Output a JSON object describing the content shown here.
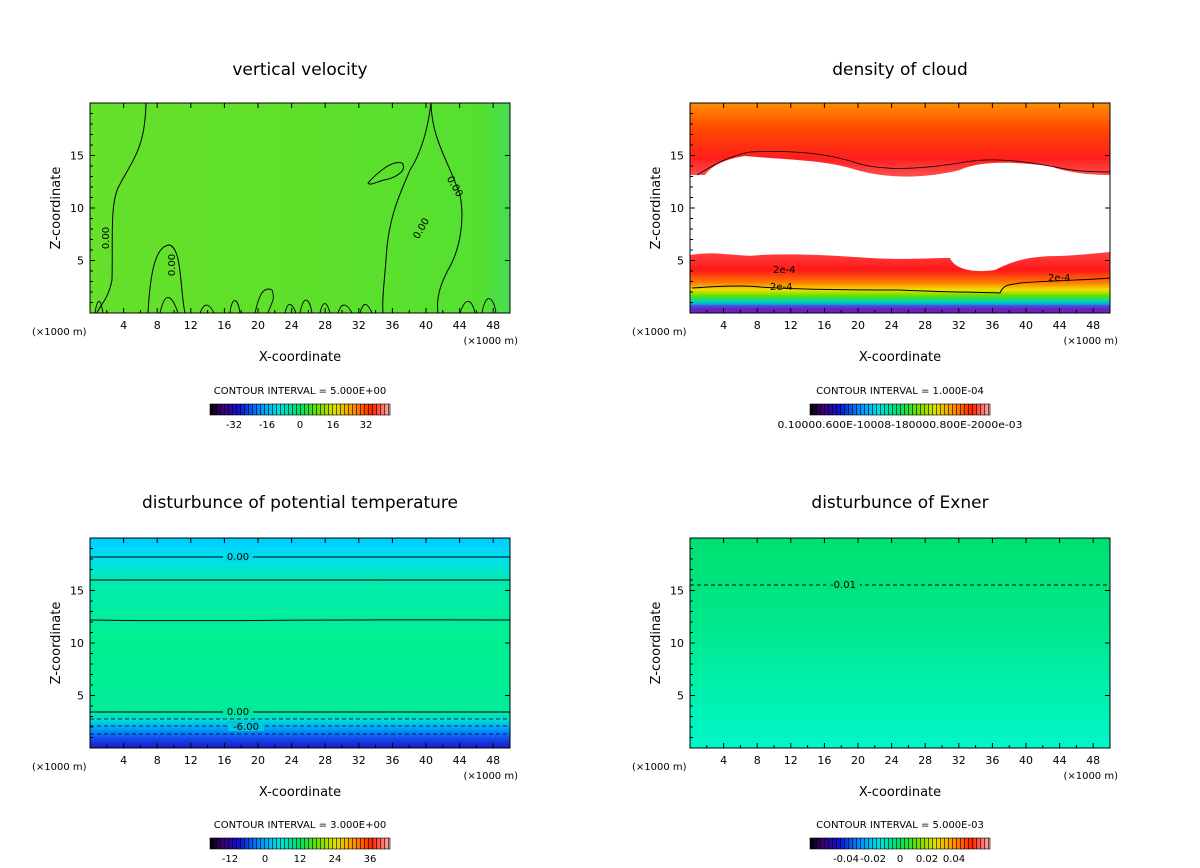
{
  "chart_data": [
    {
      "type": "heatmap",
      "title": "vertical velocity",
      "xlabel": "X-coordinate",
      "ylabel": "Z-coordinate",
      "x_unit": "(×1000 m)",
      "xlim": [
        0,
        50
      ],
      "ylim": [
        0,
        20
      ],
      "x_ticks": [
        4,
        8,
        12,
        16,
        20,
        24,
        28,
        32,
        36,
        40,
        44,
        48
      ],
      "y_ticks": [
        5,
        10,
        15
      ],
      "contour_interval": "CONTOUR INTERVAL = 5.000E+00",
      "colorbar_ticks": [
        "-32",
        "-16",
        "0",
        "16",
        "32"
      ],
      "contour_labels": [
        "0.00",
        "0.00",
        "0.00",
        "0.00"
      ]
    },
    {
      "type": "heatmap",
      "title": "density of cloud",
      "xlabel": "X-coordinate",
      "ylabel": "Z-coordinate",
      "x_unit": "(×1000 m)",
      "xlim": [
        0,
        50
      ],
      "ylim": [
        0,
        20
      ],
      "x_ticks": [
        4,
        8,
        12,
        16,
        20,
        24,
        28,
        32,
        36,
        40,
        44,
        48
      ],
      "y_ticks": [
        5,
        10,
        15
      ],
      "contour_interval": "CONTOUR INTERVAL = 1.000E-04",
      "colorbar_ticks": [
        "0.10000.600E-10008-180000.800E-2000e-03"
      ],
      "contour_labels": [
        "2e-4",
        "2e-4",
        "2e-4"
      ]
    },
    {
      "type": "heatmap",
      "title": "disturbunce of potential temperature",
      "xlabel": "X-coordinate",
      "ylabel": "Z-coordinate",
      "x_unit": "(×1000 m)",
      "xlim": [
        0,
        50
      ],
      "ylim": [
        0,
        20
      ],
      "x_ticks": [
        4,
        8,
        12,
        16,
        20,
        24,
        28,
        32,
        36,
        40,
        44,
        48
      ],
      "y_ticks": [
        5,
        10,
        15
      ],
      "contour_interval": "CONTOUR INTERVAL = 3.000E+00",
      "colorbar_ticks": [
        "-12",
        "0",
        "12",
        "24",
        "36"
      ],
      "contour_labels": [
        "0.00",
        "0.00",
        "-6.00"
      ]
    },
    {
      "type": "heatmap",
      "title": "disturbunce of Exner",
      "xlabel": "X-coordinate",
      "ylabel": "Z-coordinate",
      "x_unit": "(×1000 m)",
      "xlim": [
        0,
        50
      ],
      "ylim": [
        0,
        20
      ],
      "x_ticks": [
        4,
        8,
        12,
        16,
        20,
        24,
        28,
        32,
        36,
        40,
        44,
        48
      ],
      "y_ticks": [
        5,
        10,
        15
      ],
      "contour_interval": "CONTOUR INTERVAL = 5.000E-03",
      "colorbar_ticks": [
        "-0.04",
        "-0.02",
        "0",
        "0.02",
        "0.04"
      ],
      "contour_labels": [
        "-0.01"
      ]
    }
  ]
}
